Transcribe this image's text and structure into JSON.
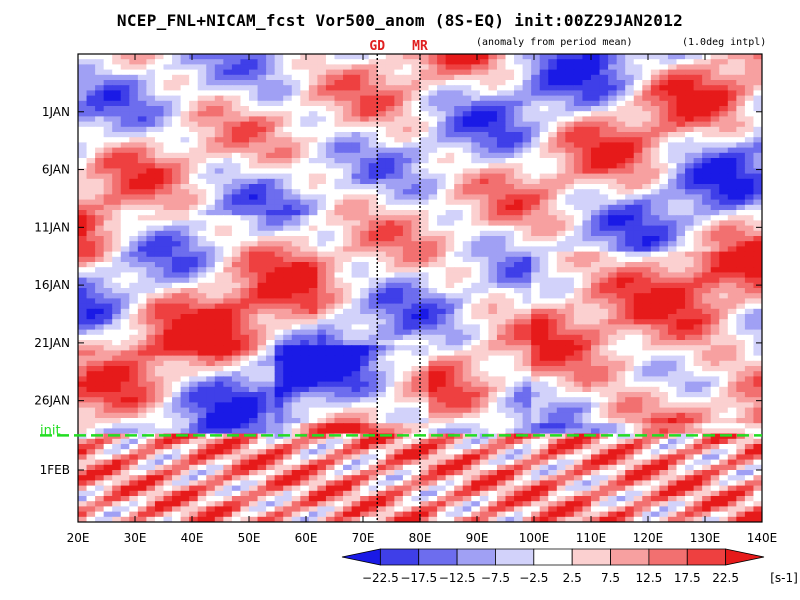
{
  "title": "NCEP_FNL+NICAM_fcst Vor500_anom (8S-EQ) init:00Z29JAN2012",
  "annotations": {
    "anomaly_note": "(anomaly from period mean)",
    "interp_note": "(1.0deg intpl)"
  },
  "chart_data": {
    "type": "heatmap",
    "variable": "500 hPa vorticity anomaly, averaged 8S-EQ (Hovmoller)",
    "xlim": [
      20,
      140
    ],
    "xticks": [
      20,
      30,
      40,
      50,
      60,
      70,
      80,
      90,
      100,
      110,
      120,
      130,
      140
    ],
    "xtick_labels": [
      "20E",
      "30E",
      "40E",
      "50E",
      "60E",
      "70E",
      "80E",
      "90E",
      "100E",
      "110E",
      "120E",
      "130E",
      "140E"
    ],
    "time_axis": "days since 27 Dec 2011 (downward)",
    "ylim": [
      0,
      40.5
    ],
    "yticks": [
      5,
      10,
      15,
      20,
      25,
      30,
      36
    ],
    "ytick_labels": [
      "1JAN",
      "6JAN",
      "11JAN",
      "16JAN",
      "21JAN",
      "26JAN",
      "1FEB"
    ],
    "init_line": {
      "label": "init",
      "value": 33,
      "color": "#22dd22"
    },
    "markers": [
      {
        "label": "GD",
        "lon": 72.5
      },
      {
        "label": "MR",
        "lon": 80
      }
    ],
    "colorbar": {
      "levels": [
        -22.5,
        -17.5,
        -12.5,
        -7.5,
        -2.5,
        2.5,
        7.5,
        12.5,
        17.5,
        22.5
      ],
      "labels": [
        "−22.5",
        "−17.5",
        "−12.5",
        "−7.5",
        "−2.5",
        "2.5",
        "7.5",
        "12.5",
        "17.5",
        "22.5"
      ],
      "colors": [
        "#1a1ae6",
        "#3f3fe8",
        "#6d6dee",
        "#a0a0f4",
        "#d2d2fa",
        "#ffffff",
        "#fbd0d0",
        "#f7a0a0",
        "#f27070",
        "#ee4040",
        "#e61a1a"
      ],
      "units": "[s-1]"
    }
  }
}
